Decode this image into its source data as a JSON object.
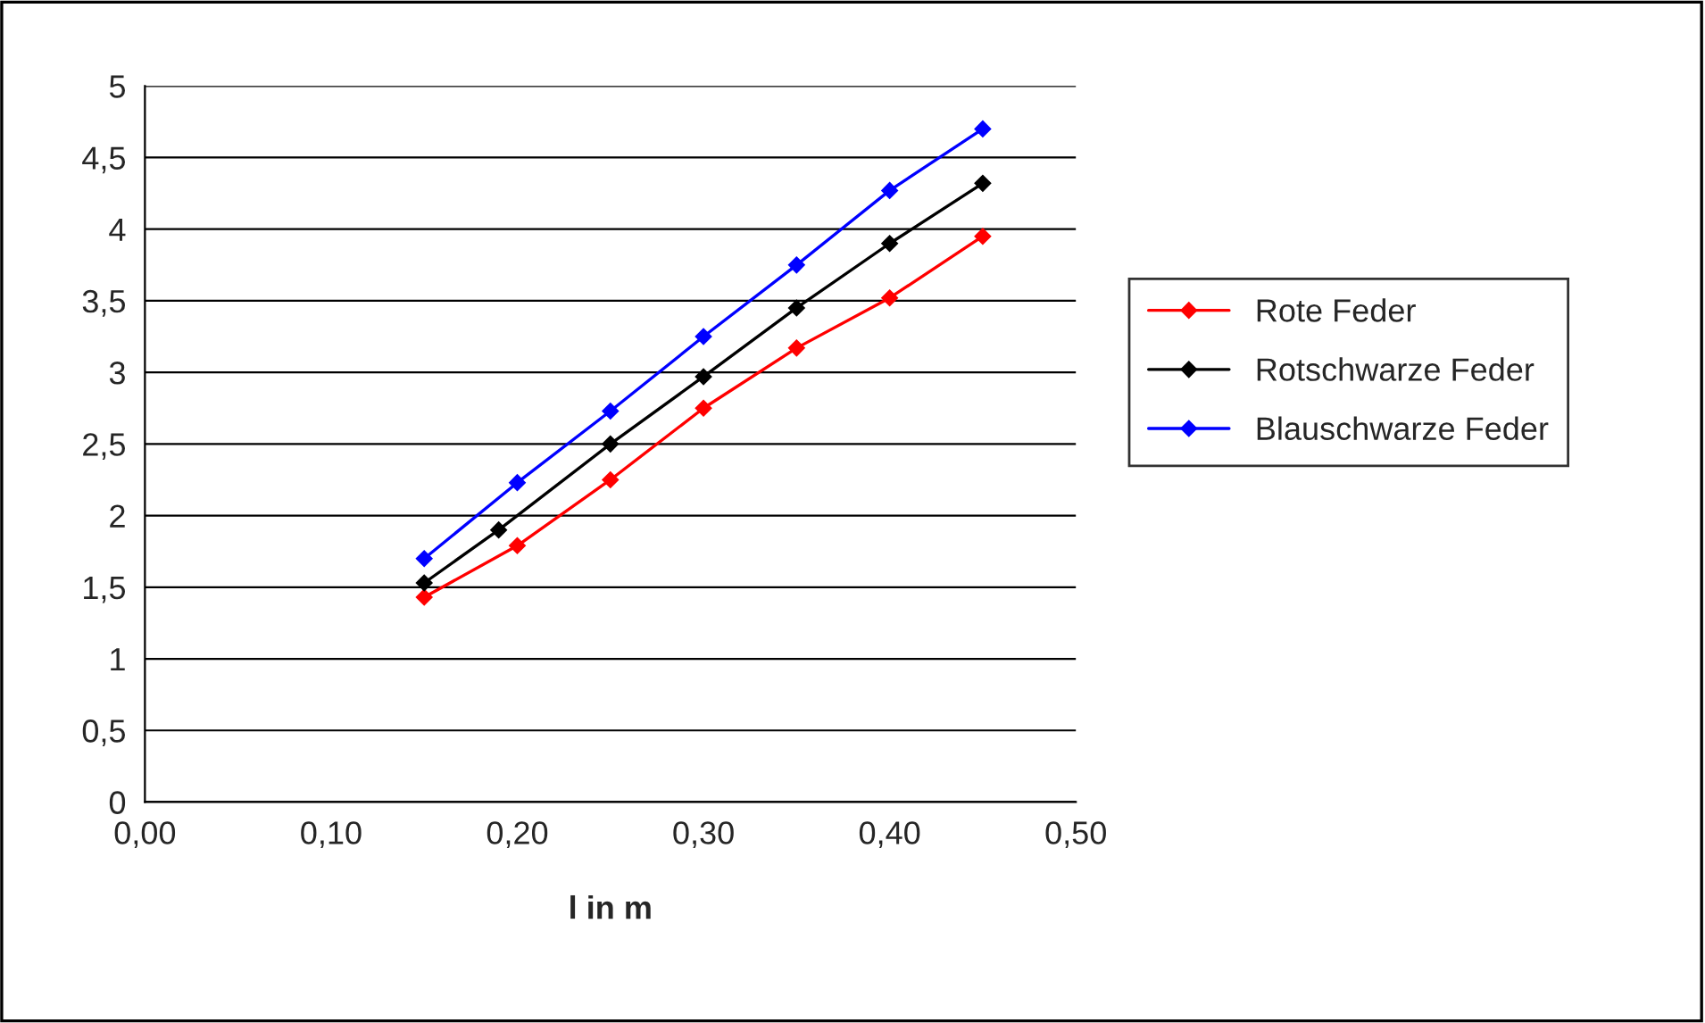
{
  "chart_data": {
    "type": "line",
    "xlabel": "l in m",
    "marker": "diamond",
    "line_style": "solid",
    "grid": "y",
    "legend": "right",
    "xlim": [
      0,
      0.5
    ],
    "xticks": [
      {
        "value": 0,
        "label": "0,00"
      },
      {
        "value": 0.1,
        "label": "0,10"
      },
      {
        "value": 0.2,
        "label": "0,20"
      },
      {
        "value": 0.3,
        "label": "0,30"
      },
      {
        "value": 0.4,
        "label": "0,40"
      },
      {
        "value": 0.5,
        "label": "0,50"
      }
    ],
    "ylim": [
      0,
      5
    ],
    "yticks": [
      0,
      {
        "value": 0.5,
        "label": "0,5"
      },
      1,
      {
        "value": 1.5,
        "label": "1,5"
      },
      2,
      {
        "value": 2.5,
        "label": "2,5"
      },
      3,
      {
        "value": 3.5,
        "label": "3,5"
      },
      4,
      {
        "value": 4.5,
        "label": "4,5"
      },
      5
    ],
    "series": [
      {
        "name": "Rote Feder",
        "color": "#ff0000",
        "x": [
          0.15,
          0.2,
          0.25,
          0.3,
          0.35,
          0.4,
          0.45
        ],
        "values": [
          1.43,
          1.79,
          2.25,
          2.75,
          3.17,
          3.52,
          3.95
        ]
      },
      {
        "name": "Rotschwarze Feder",
        "color": "#000000",
        "x": [
          0.15,
          0.19,
          0.25,
          0.3,
          0.35,
          0.4,
          0.45
        ],
        "values": [
          1.53,
          1.9,
          2.5,
          2.97,
          3.45,
          3.9,
          4.32
        ]
      },
      {
        "name": "Blauschwarze Feder",
        "color": "#0000ff",
        "x": [
          0.15,
          0.2,
          0.25,
          0.3,
          0.35,
          0.4,
          0.45
        ],
        "values": [
          1.7,
          2.23,
          2.73,
          3.25,
          3.75,
          4.27,
          4.7
        ]
      }
    ]
  }
}
